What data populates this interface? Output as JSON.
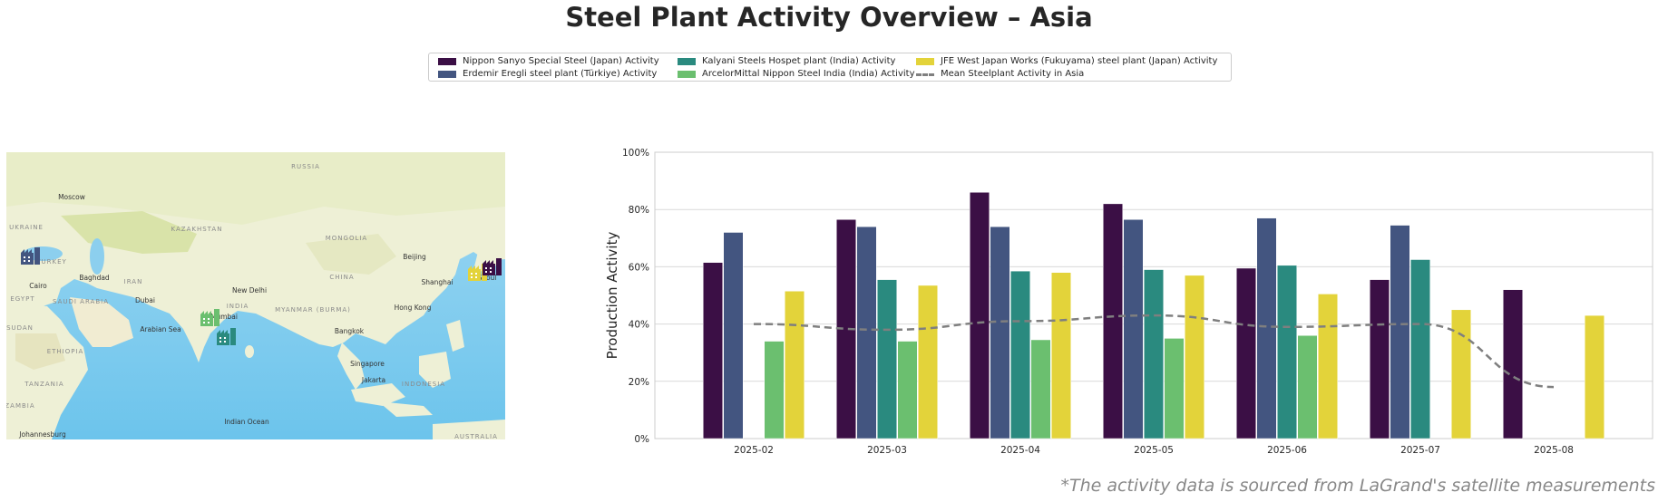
{
  "title": "Steel Plant Activity Overview – Asia",
  "footnote": "*The activity data is sourced from LaGrand's satellite measurements",
  "legend": {
    "items": [
      {
        "label": "Nippon Sanyo Special Steel (Japan) Activity",
        "color": "#3b0f45",
        "style": "bar"
      },
      {
        "label": "Erdemir Eregli steel plant (Türkiye) Activity",
        "color": "#435580",
        "style": "bar"
      },
      {
        "label": "Kalyani Steels Hospet plant (India) Activity",
        "color": "#2a8a7f",
        "style": "bar"
      },
      {
        "label": "ArcelorMittal Nippon Steel India (India) Activity",
        "color": "#6bbf6f",
        "style": "bar"
      },
      {
        "label": "JFE West Japan Works (Fukuyama) steel plant (Japan) Activity",
        "color": "#e3d33a",
        "style": "bar"
      },
      {
        "label": "Mean Steelplant Activity in Asia",
        "color": "#7f7f7f",
        "style": "dashed-line"
      }
    ]
  },
  "map": {
    "labels": [
      "RUSSIA",
      "Moscow",
      "UKRAINE",
      "KAZAKHSTAN",
      "MONGOLIA",
      "Beijing",
      "CHINA",
      "Shanghai",
      "Baghdad",
      "IRAN",
      "Cairo",
      "EGYPT",
      "SAUDI ARABIA",
      "Dubai",
      "New Delhi",
      "INDIA",
      "Mumbai",
      "MYANMAR (BURMA)",
      "Hong Kong",
      "Bangkok",
      "Arabian Sea",
      "SUDAN",
      "ETHIOPIA",
      "TANZANIA",
      "ZAMBIA",
      "Singapore",
      "Jakarta",
      "INDONESIA",
      "Indian Ocean",
      "Johannesburg",
      "AUSTRALIA",
      "TURKEY",
      "Seoul"
    ],
    "markers": [
      {
        "name": "Erdemir Eregli",
        "color": "#435580"
      },
      {
        "name": "ArcelorMittal Nippon Steel India",
        "color": "#6bbf6f"
      },
      {
        "name": "Kalyani Steels Hospet",
        "color": "#2a8a7f"
      },
      {
        "name": "JFE West Japan Works",
        "color": "#e3d33a"
      },
      {
        "name": "Nippon Sanyo Special Steel",
        "color": "#3b0f45"
      }
    ]
  },
  "chart_data": {
    "type": "bar",
    "ylabel": "Production Activity",
    "xlabel": "",
    "ylim": [
      0,
      100
    ],
    "yticks": [
      "0%",
      "20%",
      "40%",
      "60%",
      "80%",
      "100%"
    ],
    "grid": true,
    "legend_position": "top",
    "categories": [
      "2025-02",
      "2025-03",
      "2025-04",
      "2025-05",
      "2025-06",
      "2025-07",
      "2025-08"
    ],
    "series": [
      {
        "name": "Nippon Sanyo Special Steel (Japan) Activity",
        "color": "#3b0f45",
        "values": [
          61.5,
          76.5,
          86,
          82,
          59.5,
          55.5,
          52
        ]
      },
      {
        "name": "Erdemir Eregli steel plant (Türkiye) Activity",
        "color": "#435580",
        "values": [
          72,
          74,
          74,
          76.5,
          77,
          74.5,
          null
        ]
      },
      {
        "name": "Kalyani Steels Hospet plant (India) Activity",
        "color": "#2a8a7f",
        "values": [
          null,
          55.5,
          58.5,
          59,
          60.5,
          62.5,
          null
        ]
      },
      {
        "name": "ArcelorMittal Nippon Steel India (India) Activity",
        "color": "#6bbf6f",
        "values": [
          34,
          34,
          34.5,
          35,
          36,
          null,
          null
        ]
      },
      {
        "name": "JFE West Japan Works (Fukuyama) steel plant (Japan) Activity",
        "color": "#e3d33a",
        "values": [
          51.5,
          53.5,
          58,
          57,
          50.5,
          45,
          43
        ]
      }
    ],
    "mean_line": {
      "name": "Mean Steelplant Activity in Asia",
      "color": "#7f7f7f",
      "values": [
        40,
        38,
        41,
        43,
        39,
        40,
        18
      ]
    }
  }
}
